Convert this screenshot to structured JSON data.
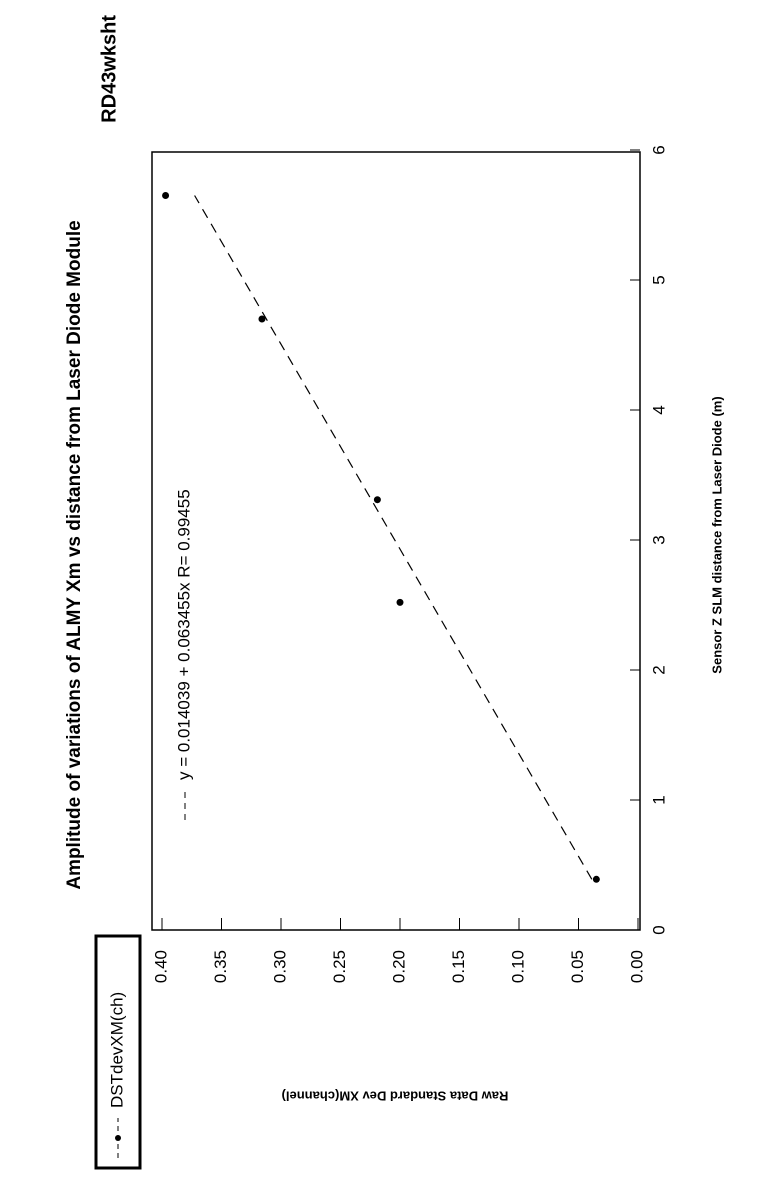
{
  "chart_data": {
    "type": "scatter",
    "title": "Amplitude of variations of ALMY Xm vs distance from Laser Diode Module",
    "subtitle": "RD43wksht",
    "x_label": "Sensor Z SLM distance from Laser Diode (m)",
    "y_label": "Raw Data Standard Dev XM(channel)",
    "xlim": [
      0,
      6
    ],
    "xticks": [
      0,
      1,
      2,
      3,
      4,
      5,
      6
    ],
    "ylim": [
      0,
      0.4
    ],
    "yticks": [
      {
        "value": 0,
        "label": "0.00"
      },
      0.05,
      {
        "value": 0.1,
        "label": "0.10"
      },
      0.15,
      {
        "value": 0.2,
        "label": "0.20"
      },
      0.25,
      {
        "value": 0.3,
        "label": "0.30"
      },
      0.35,
      {
        "value": 0.4,
        "label": "0.40"
      }
    ],
    "series": [
      {
        "name": "DSTdevXM(ch)",
        "color": "#000000",
        "style": "points",
        "x": [
          0.39,
          2.52,
          3.31,
          4.7,
          5.65
        ],
        "values": [
          0.035,
          0.2,
          0.219,
          0.316,
          0.397
        ]
      },
      {
        "name": "y = 0.014039 + 0.063455x  R= 0.99455",
        "color": "#000000",
        "style": "dashed",
        "x": [
          0.39,
          5.65
        ],
        "values": [
          0.0388,
          0.3726
        ]
      }
    ]
  }
}
